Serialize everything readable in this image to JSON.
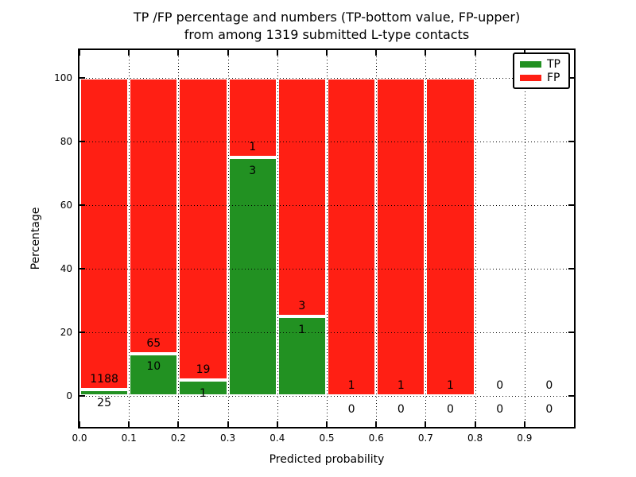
{
  "chart_data": {
    "type": "bar",
    "stacked": true,
    "title_line1": "TP /FP percentage and numbers (TP-bottom value, FP-upper)",
    "title_line2": "from among 1319 submitted L-type contacts",
    "xlabel": "Predicted probability",
    "ylabel": "Percentage",
    "xlim": [
      0.0,
      1.0
    ],
    "ylim": [
      -9.75,
      108.75
    ],
    "grid": "dotted",
    "bin_width": 0.1,
    "bin_starts": [
      0.0,
      0.1,
      0.2,
      0.3,
      0.4,
      0.5,
      0.6,
      0.7,
      0.8,
      0.9
    ],
    "x_tick_labels": [
      "0.0",
      "0.1",
      "0.2",
      "0.3",
      "0.4",
      "0.5",
      "0.6",
      "0.7",
      "0.8",
      "0.9"
    ],
    "y_tick_values": [
      0,
      20,
      40,
      60,
      80,
      100
    ],
    "series": [
      {
        "name": "TP",
        "color": "#229122",
        "counts": [
          25,
          10,
          1,
          3,
          1,
          0,
          0,
          0,
          0,
          0
        ]
      },
      {
        "name": "FP",
        "color": "#ff1f14",
        "counts": [
          1188,
          65,
          19,
          1,
          3,
          1,
          1,
          1,
          0,
          0
        ]
      }
    ],
    "tp_percent": [
      2.06,
      13.33,
      5.0,
      75.0,
      25.0,
      0,
      0,
      0,
      0,
      0
    ],
    "total_submitted": 1319,
    "legend": {
      "location": "upper right",
      "entries": [
        {
          "label": "TP",
          "color": "#229122"
        },
        {
          "label": "FP",
          "color": "#ff1f14"
        }
      ]
    }
  }
}
